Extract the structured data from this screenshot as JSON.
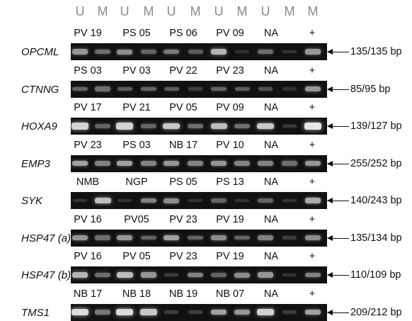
{
  "lane_headers": [
    "U",
    "M",
    "U",
    "M",
    "U",
    "M",
    "U",
    "M",
    "U",
    "M",
    "M"
  ],
  "panels": [
    {
      "gene": "OPCML",
      "samples": [
        "PV 19",
        "PS 05",
        "PS 06",
        "PV 09",
        "NA",
        "+"
      ],
      "size": "135/135 bp",
      "bands": [
        0.55,
        0.35,
        0.5,
        0.3,
        0.4,
        0.25,
        0.7,
        0.05,
        0.35,
        0.05,
        0.55
      ]
    },
    {
      "gene": "CTNNG",
      "samples": [
        "PS 03",
        "PV 03",
        "PV 22",
        "PV 23",
        "NA",
        "+"
      ],
      "size": "85/95 bp",
      "bands": [
        0.3,
        0.35,
        0.25,
        0.3,
        0.25,
        0.1,
        0.3,
        0.25,
        0.2,
        0.05,
        0.55
      ]
    },
    {
      "gene": "HOXA9",
      "samples": [
        "PV 17",
        "PV 21",
        "PV 05",
        "PV 09",
        "NA",
        "+"
      ],
      "size": "139/127 bp",
      "bands": [
        0.85,
        0.3,
        0.85,
        0.3,
        0.8,
        0.35,
        0.75,
        0.35,
        0.8,
        0.1,
        0.95
      ]
    },
    {
      "gene": "EMP3",
      "samples": [
        "PV 23",
        "PS 03",
        "NB 17",
        "PV 10",
        "NA",
        "+"
      ],
      "size": "255/252 bp",
      "bands": [
        0.6,
        0.45,
        0.6,
        0.45,
        0.55,
        0.45,
        0.55,
        0.45,
        0.45,
        0.35,
        0.55
      ]
    },
    {
      "gene": "SYK",
      "samples": [
        "NMB",
        "NGP",
        "PS 05",
        "PS 13",
        "NA",
        "+"
      ],
      "size": "140/243 bp",
      "bands": [
        0.05,
        0.75,
        0.05,
        0.45,
        0.5,
        0.05,
        0.3,
        0.05,
        0.3,
        0.05,
        0.65
      ]
    },
    {
      "gene": "HSP47 (a)",
      "samples": [
        "PV 16",
        "PV05",
        "PV 23",
        "PV 19",
        "NA",
        "+"
      ],
      "size": "135/134 bp",
      "bands": [
        0.55,
        0.35,
        0.55,
        0.3,
        0.6,
        0.3,
        0.5,
        0.3,
        0.45,
        0.1,
        0.5
      ]
    },
    {
      "gene": "HSP47 (b)",
      "samples": [
        "PV 16",
        "PV 05",
        "PV 23",
        "PV 19",
        "NA",
        "+"
      ],
      "size": "110/109 bp",
      "bands": [
        0.7,
        0.35,
        0.75,
        0.55,
        0.1,
        0.45,
        0.3,
        0.5,
        0.55,
        0.05,
        0.45
      ]
    },
    {
      "gene": "TMS1",
      "samples": [
        "NB 17",
        "NB 18",
        "NB 19",
        "NB 07",
        "NA",
        "+"
      ],
      "size": "209/212 bp",
      "bands": [
        0.9,
        0.4,
        0.9,
        0.8,
        0.1,
        0.1,
        0.6,
        0.55,
        0.85,
        0.1,
        0.6
      ]
    }
  ]
}
